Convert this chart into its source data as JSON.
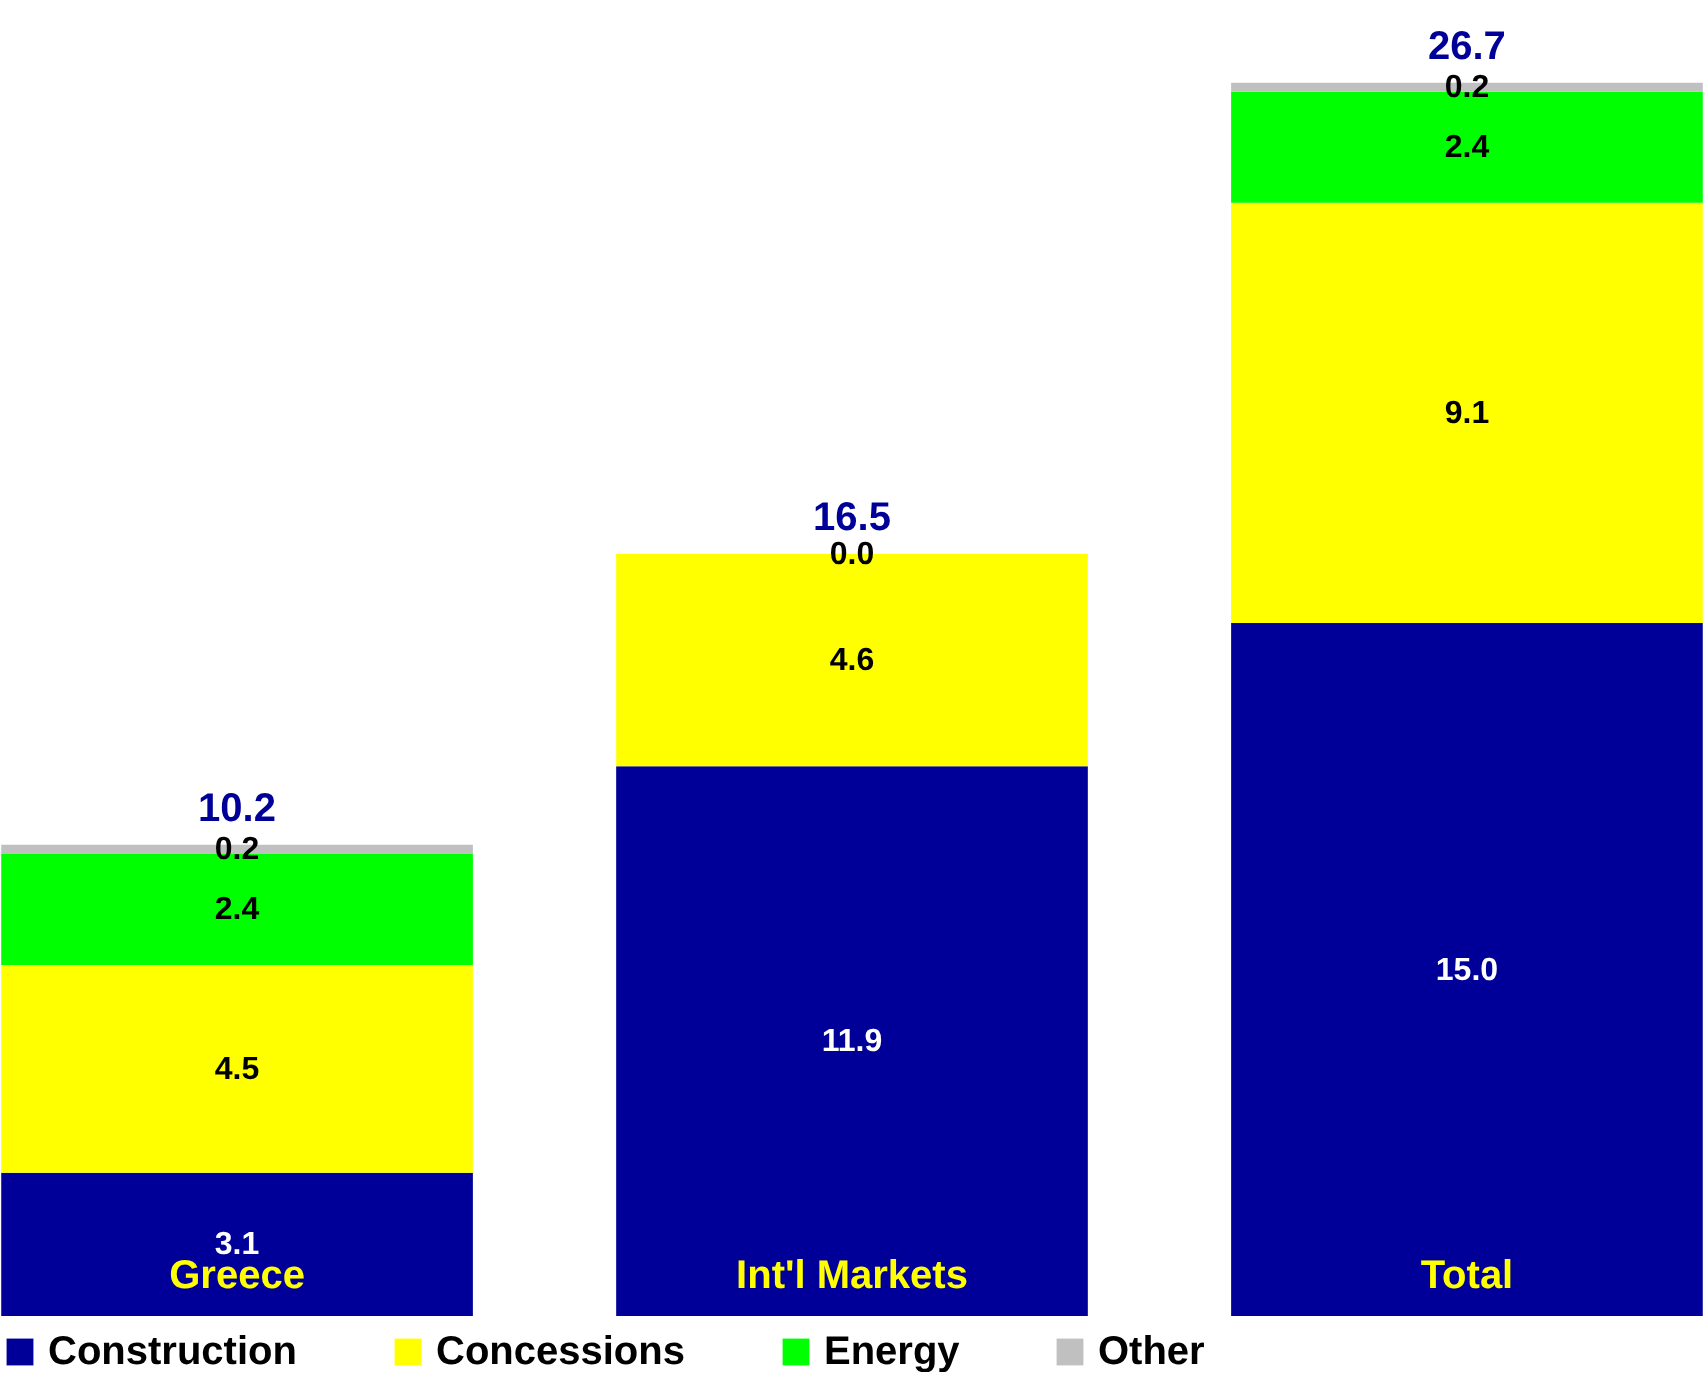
{
  "chart_data": {
    "type": "bar",
    "stacked": true,
    "categories": [
      "Greece",
      "Int'l Markets",
      "Total"
    ],
    "series": [
      {
        "name": "Construction",
        "color": "#000099",
        "values": [
          3.1,
          11.9,
          15.0
        ],
        "value_labels": [
          "3.1",
          "11.9",
          "15.0"
        ]
      },
      {
        "name": "Concessions",
        "color": "#ffff00",
        "values": [
          4.5,
          4.6,
          9.1
        ],
        "value_labels": [
          "4.5",
          "4.6",
          "9.1"
        ]
      },
      {
        "name": "Energy",
        "color": "#00ff00",
        "values": [
          2.4,
          0.0,
          2.4
        ],
        "value_labels": [
          "2.4",
          "0.0",
          "2.4"
        ]
      },
      {
        "name": "Other",
        "color": "#c0c0c0",
        "values": [
          0.2,
          null,
          0.2
        ],
        "value_labels": [
          "0.2",
          null,
          "0.2"
        ]
      }
    ],
    "totals": [
      "10.2",
      "16.5",
      "26.7"
    ],
    "legend": "bottom"
  }
}
